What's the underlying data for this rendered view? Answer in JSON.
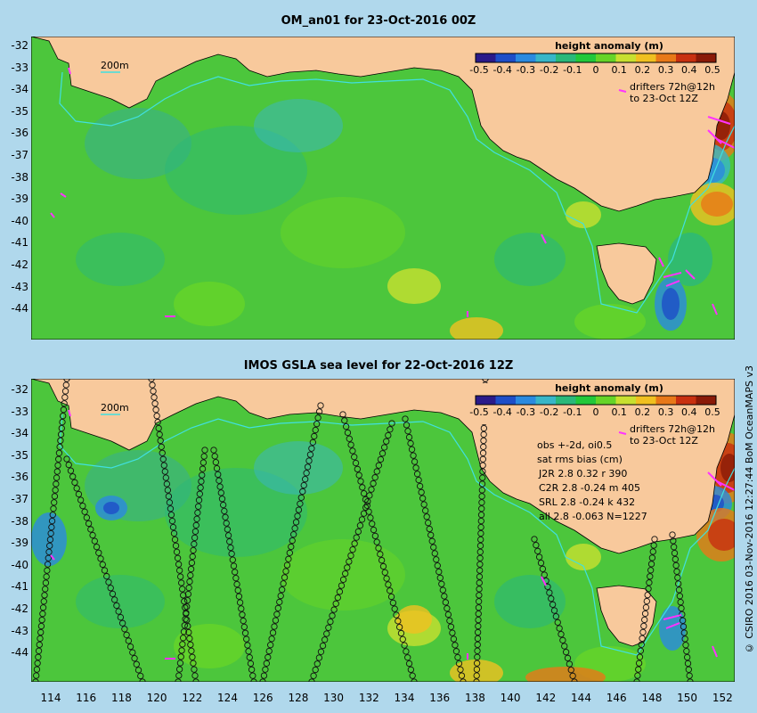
{
  "panel_top": {
    "title": "OM_an01 for 23-Oct-2016 00Z"
  },
  "panel_bottom": {
    "title": "IMOS GSLA sea level  for 22-Oct-2016 12Z"
  },
  "scale_label": "200m",
  "legend": {
    "title": "height anomaly (m)",
    "ticks": [
      "-0.5",
      "-0.4",
      "-0.3",
      "-0.2",
      "-0.1",
      "0",
      "0.1",
      "0.2",
      "0.3",
      "0.4",
      "0.5"
    ],
    "colors": [
      "#2a1a8a",
      "#1e4ec8",
      "#2a8ae0",
      "#38b6c8",
      "#2ab87a",
      "#22c83a",
      "#66d428",
      "#c8e030",
      "#f0c020",
      "#e87818",
      "#c83010",
      "#8a1a08"
    ]
  },
  "drifters": {
    "line1": "drifters 72h@12h",
    "line2": "to 23-Oct 12Z",
    "color": "#ff33ff"
  },
  "stats": {
    "lines": [
      "obs +-2d, oi0.5",
      "sat rms bias (cm)",
      "J2R   2.8 0.32 r 390",
      "C2R   2.8 -0.24 m 405",
      "SRL   2.8 -0.24 k 432",
      "all   2.8 -0.063 N=1227"
    ]
  },
  "y_ticks": [
    "-32",
    "-33",
    "-34",
    "-35",
    "-36",
    "-37",
    "-38",
    "-39",
    "-40",
    "-41",
    "-42",
    "-43",
    "-44"
  ],
  "x_ticks": [
    "114",
    "116",
    "118",
    "120",
    "122",
    "124",
    "126",
    "128",
    "130",
    "132",
    "134",
    "136",
    "138",
    "140",
    "142",
    "144",
    "146",
    "148",
    "150",
    "152"
  ],
  "credit": "© CSIRO 2016  03-Nov-2016 12:27:44 BoM OceanMAPS v3",
  "colors": {
    "land": "#f8c99c",
    "ocean": "#4cc63c",
    "background": "#b0d8ec",
    "shelf_line": "#40e0e0"
  }
}
